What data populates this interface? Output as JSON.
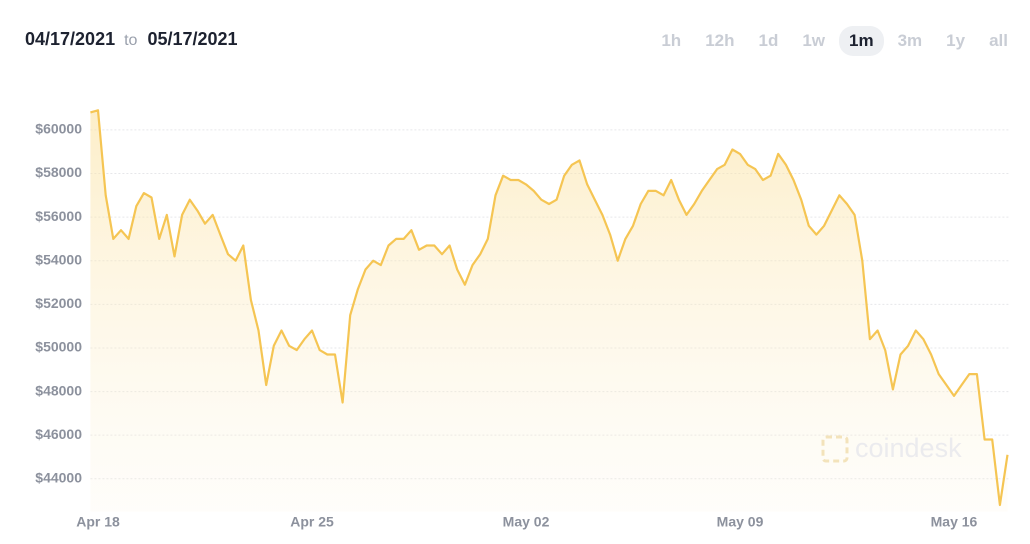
{
  "header": {
    "from": "04/17/2021",
    "to_word": "to",
    "to": "05/17/2021",
    "ranges": [
      "1h",
      "12h",
      "1d",
      "1w",
      "1m",
      "3m",
      "1y",
      "all"
    ],
    "selected": "1m"
  },
  "chart_data": {
    "type": "line",
    "color": "#f5c553",
    "watermark": "coindesk",
    "grid": true,
    "categories": [
      null,
      "Apr 18",
      null,
      null,
      null,
      null,
      null,
      null,
      null,
      null,
      null,
      null,
      null,
      null,
      null,
      null,
      null,
      null,
      null,
      null,
      null,
      null,
      null,
      null,
      null,
      null,
      null,
      null,
      null,
      "Apr 25",
      null,
      null,
      null,
      null,
      null,
      null,
      null,
      null,
      null,
      null,
      null,
      null,
      null,
      null,
      null,
      null,
      null,
      null,
      null,
      null,
      null,
      null,
      null,
      null,
      null,
      null,
      null,
      "May 02",
      null,
      null,
      null,
      null,
      null,
      null,
      null,
      null,
      null,
      null,
      null,
      null,
      null,
      null,
      null,
      null,
      null,
      null,
      null,
      null,
      null,
      null,
      null,
      null,
      null,
      null,
      null,
      "May 09",
      null,
      null,
      null,
      null,
      null,
      null,
      null,
      null,
      null,
      null,
      null,
      null,
      null,
      null,
      null,
      null,
      null,
      null,
      null,
      null,
      null,
      null,
      null,
      null,
      null,
      null,
      null,
      "May 16",
      null,
      null,
      null,
      null,
      null,
      null,
      null
    ],
    "values": [
      60800,
      60900,
      57000,
      55000,
      55400,
      55000,
      56500,
      57100,
      56900,
      55000,
      56100,
      54200,
      56100,
      56800,
      56300,
      55700,
      56100,
      55200,
      54300,
      54000,
      54700,
      52200,
      50800,
      48300,
      50100,
      50800,
      50100,
      49900,
      50400,
      50800,
      49900,
      49700,
      49700,
      47500,
      51500,
      52700,
      53600,
      54000,
      53800,
      54700,
      55000,
      55000,
      55400,
      54500,
      54700,
      54700,
      54300,
      54700,
      53600,
      52900,
      53800,
      54300,
      55000,
      57000,
      57900,
      57700,
      57700,
      57500,
      57200,
      56800,
      56600,
      56800,
      57900,
      58400,
      58600,
      57500,
      56800,
      56100,
      55200,
      54000,
      55000,
      55600,
      56600,
      57200,
      57200,
      57000,
      57700,
      56800,
      56100,
      56600,
      57200,
      57700,
      58200,
      58400,
      59100,
      58900,
      58400,
      58200,
      57700,
      57900,
      58900,
      58400,
      57700,
      56800,
      55600,
      55200,
      55600,
      56300,
      57000,
      56600,
      56100,
      54000,
      50400,
      50800,
      49900,
      48100,
      49700,
      50100,
      50800,
      50400,
      49700,
      48800,
      48300,
      47800,
      48300,
      48800,
      48800,
      45800,
      45800,
      42800,
      45100
    ],
    "ylim": [
      42500,
      61600
    ],
    "yticks": [
      {
        "value": 44000,
        "label": "$44000"
      },
      {
        "value": 46000,
        "label": "$46000"
      },
      {
        "value": 48000,
        "label": "$48000"
      },
      {
        "value": 50000,
        "label": "$50000"
      },
      {
        "value": 52000,
        "label": "$52000"
      },
      {
        "value": 54000,
        "label": "$54000"
      },
      {
        "value": 56000,
        "label": "$56000"
      },
      {
        "value": 58000,
        "label": "$58000"
      },
      {
        "value": 60000,
        "label": "$60000"
      }
    ]
  }
}
